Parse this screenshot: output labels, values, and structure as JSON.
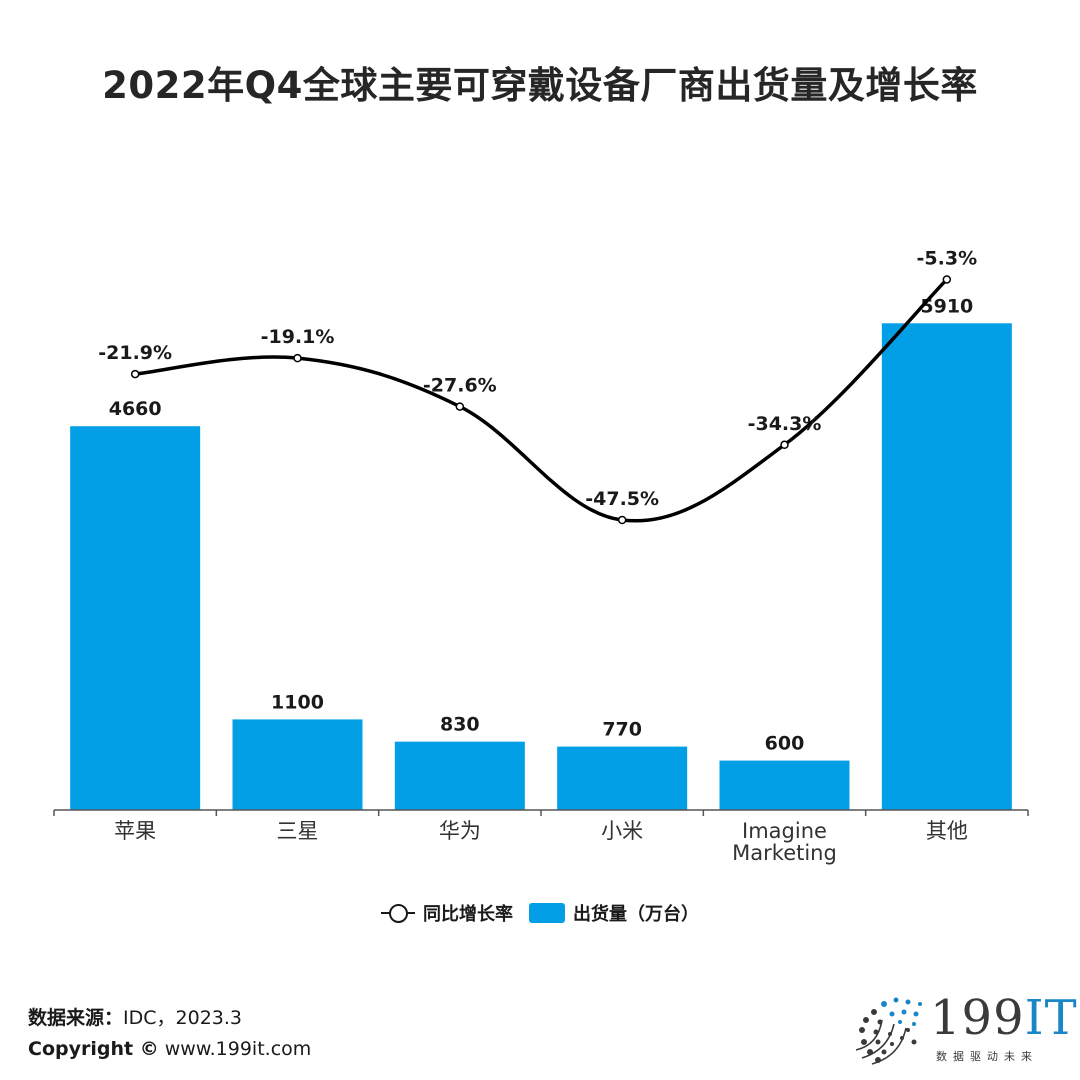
{
  "title": "2022年Q4全球主要可穿戴设备厂商出货量及增长率",
  "colors": {
    "bar": "#039fe6",
    "line": "#000000",
    "axis": "#555555"
  },
  "chart_data": {
    "type": "bar+line",
    "title": "2022年Q4全球主要可穿戴设备厂商出货量及增长率",
    "categories": [
      "苹果",
      "三星",
      "华为",
      "小米",
      "Imagine Marketing",
      "其他"
    ],
    "category_lines": [
      [
        "苹果"
      ],
      [
        "三星"
      ],
      [
        "华为"
      ],
      [
        "小米"
      ],
      [
        "Imagine",
        "Marketing"
      ],
      [
        "其他"
      ]
    ],
    "series": [
      {
        "name": "出货量（万台）",
        "type": "bar",
        "values": [
          4660,
          1100,
          830,
          770,
          600,
          5910
        ],
        "labels": [
          "4660",
          "1100",
          "830",
          "770",
          "600",
          "5910"
        ]
      },
      {
        "name": "同比增长率",
        "type": "line",
        "values": [
          -21.9,
          -19.1,
          -27.6,
          -47.5,
          -34.3,
          -5.3
        ],
        "labels": [
          "-21.9%",
          "-19.1%",
          "-27.6%",
          "-47.5%",
          "-34.3%",
          "-5.3%"
        ]
      }
    ],
    "bar_ylim": [
      0,
      6800
    ],
    "line_ylim": [
      -80,
      0
    ],
    "legend_position": "bottom"
  },
  "legend": {
    "line_label": "同比增长率",
    "bar_label": "出货量（万台）"
  },
  "footer": {
    "source_label": "数据来源：",
    "source_value": "IDC，2023.3",
    "copyright_label": "Copyright ©",
    "copyright_value": "www.199it.com"
  },
  "logo": {
    "name_a": "199",
    "name_b": "IT",
    "tagline": "数据驱动未来"
  }
}
